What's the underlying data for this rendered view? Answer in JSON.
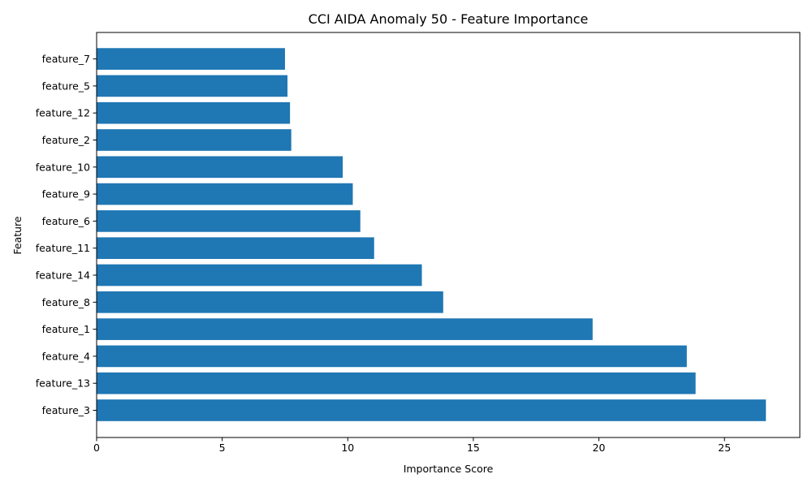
{
  "chart_data": {
    "type": "bar",
    "orientation": "horizontal",
    "title": "CCI AIDA Anomaly 50 - Feature Importance",
    "xlabel": "Importance Score",
    "ylabel": "Feature",
    "xlim": [
      0,
      28
    ],
    "xticks": [
      0,
      5,
      10,
      15,
      20,
      25
    ],
    "bar_color": "#1f77b4",
    "grid": false,
    "categories": [
      "feature_3",
      "feature_13",
      "feature_4",
      "feature_1",
      "feature_8",
      "feature_14",
      "feature_11",
      "feature_6",
      "feature_9",
      "feature_10",
      "feature_2",
      "feature_12",
      "feature_5",
      "feature_7"
    ],
    "values": [
      26.65,
      23.85,
      23.5,
      19.75,
      13.8,
      12.95,
      11.05,
      10.5,
      10.2,
      9.8,
      7.75,
      7.7,
      7.6,
      7.5
    ]
  }
}
